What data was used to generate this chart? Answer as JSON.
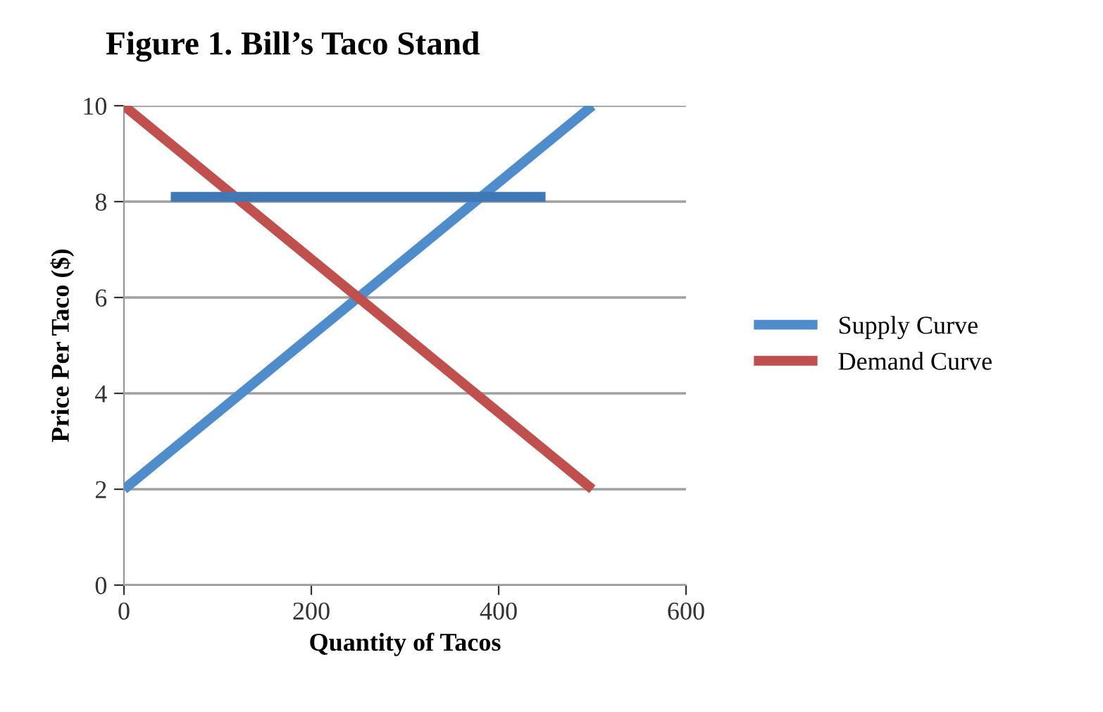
{
  "chart_data": {
    "type": "line",
    "title": "Figure 1. Bill’s Taco Stand",
    "xlabel": "Quantity of Tacos",
    "ylabel": "Price Per Taco ($)",
    "x": [
      0,
      500
    ],
    "series": [
      {
        "name": "Supply Curve",
        "color": "#4f8ccc",
        "values": [
          2,
          10
        ]
      },
      {
        "name": "Demand Curve",
        "color": "#c0504d",
        "values": [
          10,
          2
        ]
      },
      {
        "color": "#3f78b5",
        "x": [
          50,
          450
        ],
        "values": [
          8.1,
          8.1
        ]
      }
    ],
    "xlim": [
      0,
      600
    ],
    "xticks": [
      0,
      200,
      400,
      600
    ],
    "ylim": [
      0,
      10
    ],
    "yticks": [
      0,
      2,
      4,
      6,
      8,
      10
    ],
    "grid": "y",
    "legend": "right",
    "marker": "none",
    "line_style": "solid"
  }
}
